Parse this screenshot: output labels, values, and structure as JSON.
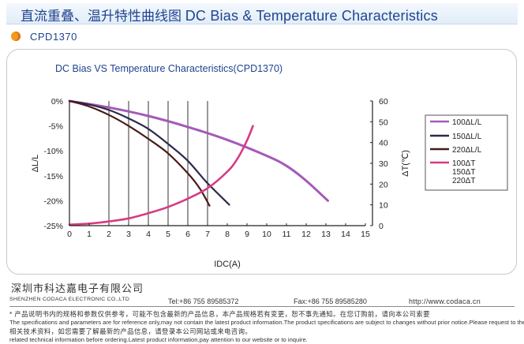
{
  "header": {
    "title_cn": "直流重叠、温升特性曲线图",
    "title_en": "DC Bias & Temperature Characteristics"
  },
  "part": {
    "number": "CPD1370",
    "icon": "orange-bullet-icon"
  },
  "chart_data": {
    "type": "line",
    "title": "DC Bias VS Temperature Characteristics(CPD1370)",
    "xlabel": "IDC(A)",
    "ylabel_left": "ΔL/L",
    "ylabel_right": "ΔT(℃)",
    "xlim": [
      0,
      15
    ],
    "ylim_left": [
      -25,
      0
    ],
    "ylim_right": [
      0,
      60
    ],
    "x_ticks": [
      "0",
      "1",
      "2",
      "3",
      "4",
      "5",
      "6",
      "7",
      "8",
      "9",
      "10",
      "11",
      "12",
      "13",
      "14",
      "15"
    ],
    "y_left_ticks": [
      "0%",
      "-5%",
      "-10%",
      "-15%",
      "-20%",
      "-25%"
    ],
    "y_right_ticks": [
      "60",
      "50",
      "40",
      "30",
      "20",
      "10",
      "0"
    ],
    "grid": "vertical lines at x = 2..7",
    "legend_position": "right",
    "series": [
      {
        "name": "100ΔL/L",
        "axis": "left",
        "color": "#a45ab8",
        "x": [
          0,
          2,
          4,
          6,
          8,
          10,
          11,
          12,
          13.1
        ],
        "y": [
          0,
          -1.3,
          -3,
          -5.2,
          -7.8,
          -11,
          -13,
          -16,
          -20
        ]
      },
      {
        "name": "150ΔL/L",
        "axis": "left",
        "color": "#2d2a4e",
        "x": [
          0,
          1,
          2,
          3,
          4,
          5,
          6,
          7,
          8.1
        ],
        "y": [
          0,
          -0.7,
          -1.8,
          -3.5,
          -5.6,
          -8.6,
          -12,
          -16.5,
          -20.8
        ]
      },
      {
        "name": "220ΔL/L",
        "axis": "left",
        "color": "#4a1a1a",
        "x": [
          0,
          1,
          2,
          3,
          4,
          5,
          6,
          6.6,
          7.1
        ],
        "y": [
          0,
          -1.1,
          -2.8,
          -5,
          -7.6,
          -10.5,
          -14.5,
          -17.5,
          -21
        ]
      },
      {
        "name": "100ΔT 150ΔT 220ΔT",
        "axis": "right",
        "color": "#d83a82",
        "x": [
          0,
          1,
          2,
          3,
          4,
          5,
          6,
          7,
          8,
          8.5,
          9,
          9.3
        ],
        "y": [
          0.5,
          1.0,
          2.0,
          3.5,
          6,
          9,
          13,
          18,
          26,
          32,
          41,
          48
        ]
      }
    ],
    "legend": [
      {
        "label": "100ΔL/L",
        "color": "#a45ab8"
      },
      {
        "label": "150ΔL/L",
        "color": "#2d2a4e"
      },
      {
        "label": "220ΔL/L",
        "color": "#4a1a1a"
      },
      {
        "label": "100ΔT",
        "label2": "150ΔT",
        "label3": "220ΔT",
        "color": "#d83a82"
      }
    ]
  },
  "footer": {
    "company_cn": "深圳市科达嘉电子有限公司",
    "company_en": "SHENZHEN CODACA ELECTRONIC CO.,LTD",
    "tel": "Tel:+86 755 89585372",
    "fax": "Fax:+86 755 89585280",
    "web": "http://www.codaca.cn",
    "note_cn_1": "* 产品说明书内的规格和参数仅供参考，可能不包含最新的产品信息，本产品规格若有变更，恕不事先通知。在您订购前，请向本公司索要",
    "note_en_1": "The specifications and parameters are for reference only,may not contain the latest product information.The product specifications are subject to changes without prior notice.Please request to the",
    "note_cn_2": "相关技术资料，如您需要了解最新的产品信息，请登录本公司网站或来电咨询。",
    "note_en_2": "related technical information before ordering.Latest product information,pay attention to our website or to inquire."
  }
}
